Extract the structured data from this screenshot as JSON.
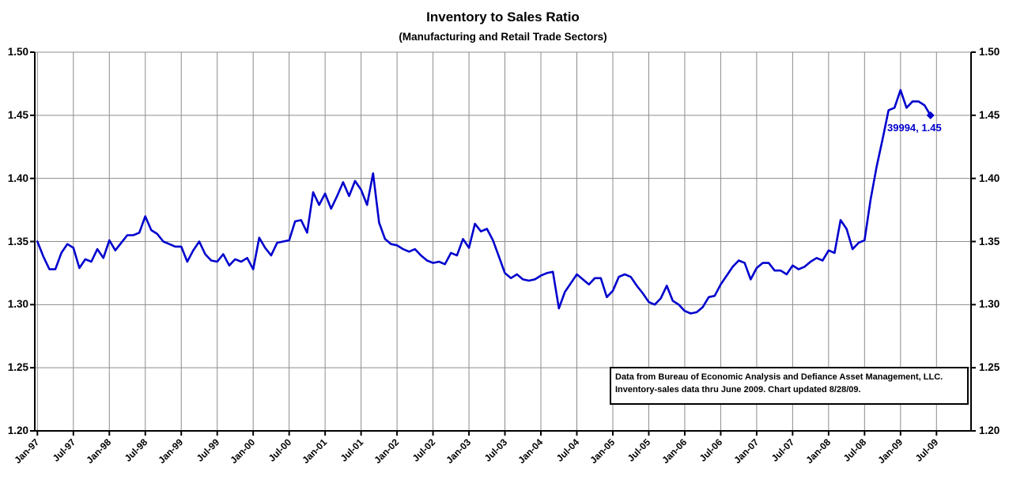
{
  "chart_data": {
    "type": "line",
    "title": "Inventory to Sales Ratio",
    "subtitle": "(Manufacturing and Retail Trade Sectors)",
    "x_tick_labels": [
      "Jan-97",
      "Jul-97",
      "Jan-98",
      "Jul-98",
      "Jan-99",
      "Jul-99",
      "Jan-00",
      "Jul-00",
      "Jan-01",
      "Jul-01",
      "Jan-02",
      "Jul-02",
      "Jan-03",
      "Jul-03",
      "Jan-04",
      "Jul-04",
      "Jan-05",
      "Jul-05",
      "Jan-06",
      "Jul-06",
      "Jan-07",
      "Jul-07",
      "Jan-08",
      "Jul-08",
      "Jan-09",
      "Jul-09"
    ],
    "y_tick_labels": [
      "1.50",
      "1.45",
      "1.40",
      "1.35",
      "1.30",
      "1.25",
      "1.20"
    ],
    "ylim": [
      1.2,
      1.5
    ],
    "ytick_step": 0.05,
    "x_frequency": "monthly",
    "x_range": [
      "Jan-97",
      "Jun-09"
    ],
    "grid": "both",
    "legend": "none",
    "series": [
      {
        "name": "Inventory to Sales Ratio",
        "color": "#0000CE",
        "values": [
          1.35,
          1.338,
          1.328,
          1.328,
          1.341,
          1.348,
          1.345,
          1.329,
          1.336,
          1.334,
          1.344,
          1.337,
          1.351,
          1.343,
          1.349,
          1.355,
          1.355,
          1.357,
          1.37,
          1.359,
          1.356,
          1.35,
          1.348,
          1.346,
          1.346,
          1.334,
          1.343,
          1.35,
          1.34,
          1.335,
          1.334,
          1.34,
          1.331,
          1.336,
          1.334,
          1.337,
          1.328,
          1.353,
          1.345,
          1.339,
          1.349,
          1.35,
          1.351,
          1.366,
          1.367,
          1.357,
          1.389,
          1.379,
          1.388,
          1.376,
          1.386,
          1.397,
          1.386,
          1.398,
          1.391,
          1.379,
          1.404,
          1.365,
          1.352,
          1.348,
          1.347,
          1.344,
          1.342,
          1.344,
          1.339,
          1.335,
          1.333,
          1.334,
          1.332,
          1.341,
          1.339,
          1.352,
          1.345,
          1.364,
          1.358,
          1.36,
          1.351,
          1.338,
          1.325,
          1.321,
          1.324,
          1.32,
          1.319,
          1.32,
          1.323,
          1.325,
          1.326,
          1.297,
          1.31,
          1.317,
          1.324,
          1.32,
          1.316,
          1.321,
          1.321,
          1.306,
          1.311,
          1.322,
          1.324,
          1.322,
          1.315,
          1.309,
          1.302,
          1.3,
          1.305,
          1.315,
          1.303,
          1.3,
          1.295,
          1.293,
          1.294,
          1.298,
          1.306,
          1.307,
          1.316,
          1.323,
          1.33,
          1.335,
          1.333,
          1.32,
          1.329,
          1.333,
          1.333,
          1.327,
          1.327,
          1.324,
          1.331,
          1.328,
          1.33,
          1.334,
          1.337,
          1.335,
          1.343,
          1.341,
          1.367,
          1.36,
          1.344,
          1.349,
          1.351,
          1.383,
          1.409,
          1.431,
          1.454,
          1.456,
          1.47,
          1.456,
          1.461,
          1.461,
          1.458,
          1.45
        ]
      }
    ],
    "end_marker": "diamond",
    "annotation": {
      "text": "39994, 1.45"
    },
    "note_lines": [
      "Data from Bureau of Economic Analysis and Defiance Asset Management, LLC.",
      "Inventory-sales data thru June 2009. Chart updated 8/28/09."
    ],
    "colors": {
      "line": "#0000CE",
      "annotation_text": "#0000CE",
      "grid": "#8C8C8C",
      "axis": "#000000",
      "background": "#FFFFFF"
    }
  }
}
